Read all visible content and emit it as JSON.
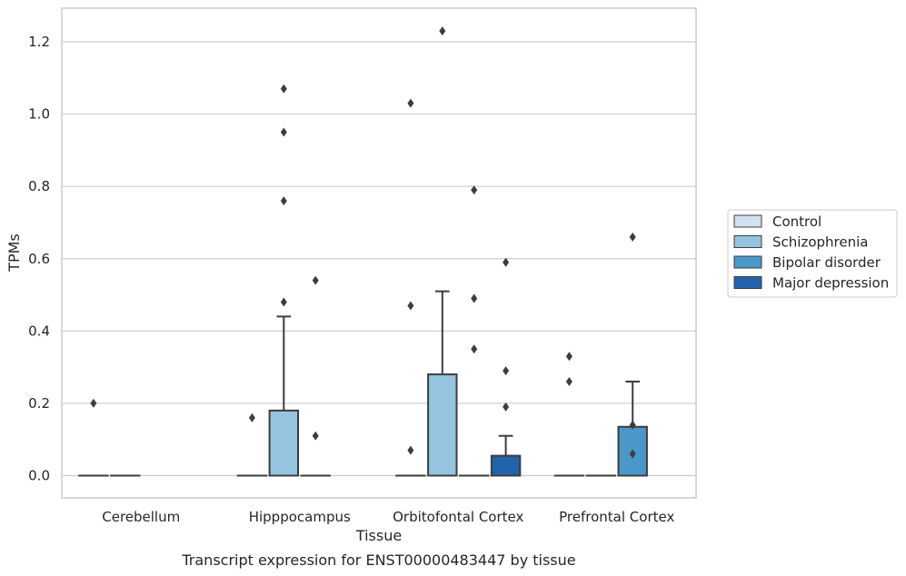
{
  "caption": "Transcript expression for ENST00000483447 by tissue",
  "chart_data": {
    "type": "box",
    "xlabel": "Tissue",
    "ylabel": "TPMs",
    "ylim": [
      -0.06,
      1.29
    ],
    "yticks": [
      0.0,
      0.2,
      0.4,
      0.6,
      0.8,
      1.0,
      1.2
    ],
    "ytick_labels": [
      "0.0",
      "0.2",
      "0.4",
      "0.6",
      "0.8",
      "1.0",
      "1.2"
    ],
    "grid": "horizontal",
    "legend_position": "right",
    "categories": [
      "Cerebellum",
      "Hipppocampus",
      "Orbitofontal Cortex",
      "Prefrontal Cortex"
    ],
    "series": [
      {
        "name": "Control",
        "color": "#d0e1f2"
      },
      {
        "name": "Schizophrenia",
        "color": "#94c4df"
      },
      {
        "name": "Bipolar disorder",
        "color": "#4a98c9"
      },
      {
        "name": "Major depression",
        "color": "#2164ab"
      }
    ],
    "boxes": [
      {
        "category": "Cerebellum",
        "series": "Control",
        "q1": 0,
        "median": 0,
        "q3": 0,
        "whisker_low": 0,
        "whisker_high": 0,
        "outliers": [
          0.2
        ]
      },
      {
        "category": "Cerebellum",
        "series": "Schizophrenia",
        "q1": 0,
        "median": 0,
        "q3": 0,
        "whisker_low": 0,
        "whisker_high": 0,
        "outliers": []
      },
      {
        "category": "Hipppocampus",
        "series": "Control",
        "q1": 0,
        "median": 0,
        "q3": 0,
        "whisker_low": 0,
        "whisker_high": 0,
        "outliers": [
          0.16
        ]
      },
      {
        "category": "Hipppocampus",
        "series": "Schizophrenia",
        "q1": 0,
        "median": 0,
        "q3": 0.18,
        "whisker_low": 0,
        "whisker_high": 0.44,
        "outliers": [
          0.48,
          0.76,
          0.95,
          1.07
        ]
      },
      {
        "category": "Hipppocampus",
        "series": "Bipolar disorder",
        "q1": 0,
        "median": 0,
        "q3": 0,
        "whisker_low": 0,
        "whisker_high": 0,
        "outliers": [
          0.11,
          0.54
        ]
      },
      {
        "category": "Orbitofontal Cortex",
        "series": "Control",
        "q1": 0,
        "median": 0,
        "q3": 0,
        "whisker_low": 0,
        "whisker_high": 0,
        "outliers": [
          0.07,
          0.47,
          1.03
        ]
      },
      {
        "category": "Orbitofontal Cortex",
        "series": "Schizophrenia",
        "q1": 0,
        "median": 0,
        "q3": 0.28,
        "whisker_low": 0,
        "whisker_high": 0.51,
        "outliers": [
          1.23
        ]
      },
      {
        "category": "Orbitofontal Cortex",
        "series": "Bipolar disorder",
        "q1": 0,
        "median": 0,
        "q3": 0,
        "whisker_low": 0,
        "whisker_high": 0,
        "outliers": [
          0.35,
          0.49,
          0.79
        ]
      },
      {
        "category": "Orbitofontal Cortex",
        "series": "Major depression",
        "q1": 0,
        "median": 0,
        "q3": 0.055,
        "whisker_low": 0,
        "whisker_high": 0.11,
        "outliers": [
          0.19,
          0.29,
          0.59
        ]
      },
      {
        "category": "Prefrontal Cortex",
        "series": "Control",
        "q1": 0,
        "median": 0,
        "q3": 0,
        "whisker_low": 0,
        "whisker_high": 0,
        "outliers": [
          0.26,
          0.33
        ]
      },
      {
        "category": "Prefrontal Cortex",
        "series": "Schizophrenia",
        "q1": 0,
        "median": 0,
        "q3": 0,
        "whisker_low": 0,
        "whisker_high": 0,
        "outliers": []
      },
      {
        "category": "Prefrontal Cortex",
        "series": "Bipolar disorder",
        "q1": 0,
        "median": 0,
        "q3": 0.135,
        "whisker_low": 0,
        "whisker_high": 0.26,
        "outliers": [
          0.06,
          0.14,
          0.66
        ]
      }
    ]
  }
}
